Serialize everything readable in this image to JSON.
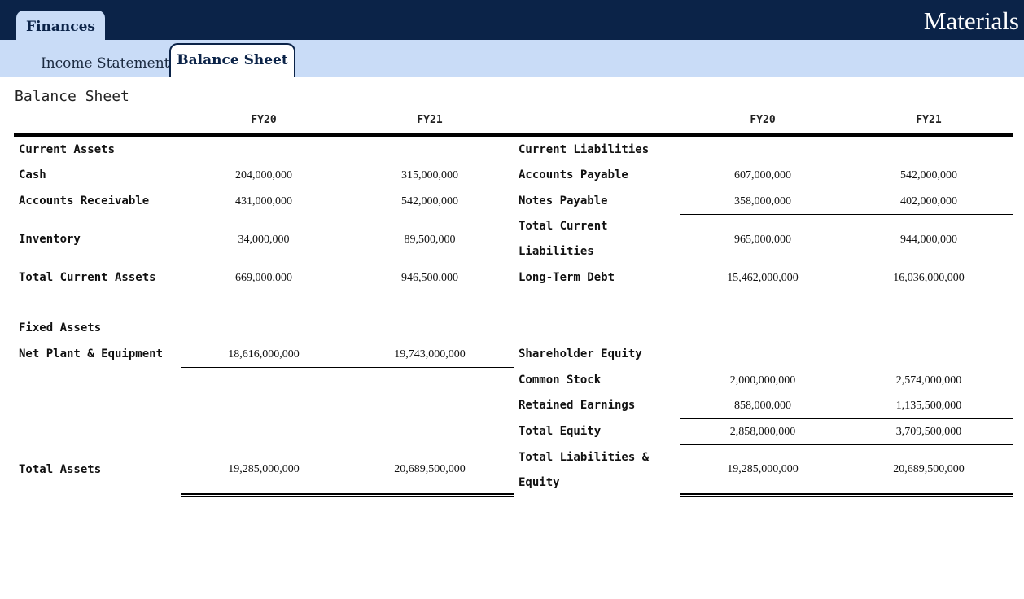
{
  "header": {
    "tab_label": "Finances",
    "app_title": "Materials"
  },
  "subtabs": [
    {
      "label": "Income Statement",
      "active": false
    },
    {
      "label": "Balance Sheet",
      "active": true
    }
  ],
  "page_title": "Balance Sheet",
  "columns": [
    "FY20",
    "FY21"
  ],
  "assets": {
    "current_heading": "Current Assets",
    "cash": {
      "label": "Cash",
      "fy20": "204,000,000",
      "fy21": "315,000,000"
    },
    "ar": {
      "label": "Accounts Receivable",
      "fy20": "431,000,000",
      "fy21": "542,000,000"
    },
    "inventory": {
      "label": "Inventory",
      "fy20": "34,000,000",
      "fy21": "89,500,000"
    },
    "total_current": {
      "label": "Total Current Assets",
      "fy20": "669,000,000",
      "fy21": "946,500,000"
    },
    "fixed_heading": "Fixed Assets",
    "ppe": {
      "label": "Net Plant & Equipment",
      "fy20": "18,616,000,000",
      "fy21": "19,743,000,000"
    },
    "total": {
      "label": "Total Assets",
      "fy20": "19,285,000,000",
      "fy21": "20,689,500,000"
    }
  },
  "liabilities": {
    "current_heading": "Current Liabilities",
    "ap": {
      "label": "Accounts Payable",
      "fy20": "607,000,000",
      "fy21": "542,000,000"
    },
    "np": {
      "label": "Notes Payable",
      "fy20": "358,000,000",
      "fy21": "402,000,000"
    },
    "total_current": {
      "label_line1": "Total Current",
      "label_line2": "Liabilities",
      "fy20": "965,000,000",
      "fy21": "944,000,000"
    },
    "ltd": {
      "label": "Long-Term Debt",
      "fy20": "15,462,000,000",
      "fy21": "16,036,000,000"
    },
    "equity_heading": "Shareholder Equity",
    "common": {
      "label": "Common Stock",
      "fy20": "2,000,000,000",
      "fy21": "2,574,000,000"
    },
    "retained": {
      "label": "Retained Earnings",
      "fy20": "858,000,000",
      "fy21": "1,135,500,000"
    },
    "total_equity": {
      "label": "Total Equity",
      "fy20": "2,858,000,000",
      "fy21": "3,709,500,000"
    },
    "total": {
      "label_line1": "Total Liabilities &",
      "label_line2": "Equity",
      "fy20": "19,285,000,000",
      "fy21": "20,689,500,000"
    }
  }
}
